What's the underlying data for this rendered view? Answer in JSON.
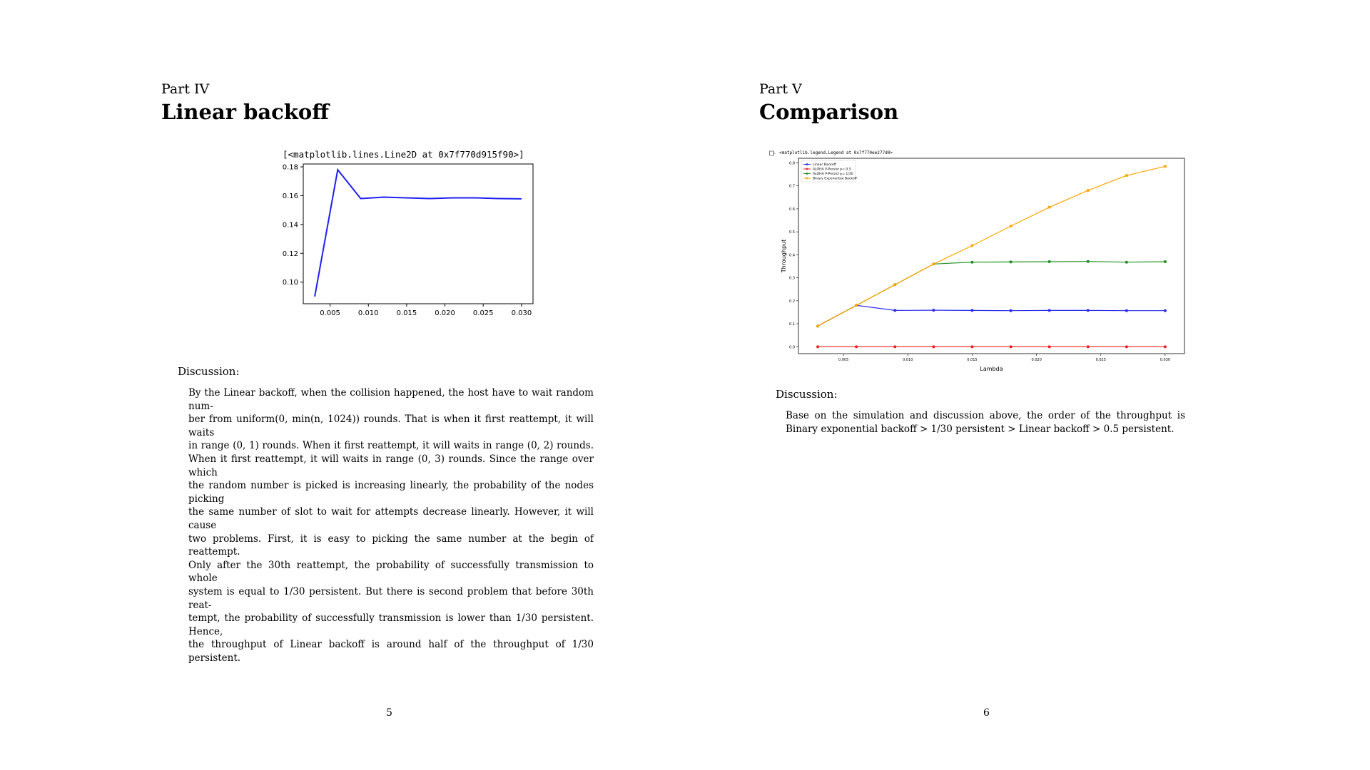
{
  "page_left": {
    "part_label": "Part IV",
    "title": "Linear backoff",
    "code_output": "[<matplotlib.lines.Line2D at 0x7f770d915f90>]",
    "discussion_label": "Discussion:",
    "discussion_lines": [
      "By the Linear backoff, when the collision happened, the host have to wait random num-",
      "ber from uniform(0, min(n, 1024)) rounds. That is when it first reattempt, it will waits",
      "in range (0, 1) rounds. When it first reattempt, it will waits in range (0, 2) rounds.",
      "When it first reattempt, it will waits in range (0, 3) rounds. Since the range over which",
      "the random number is picked is increasing linearly, the probability of the nodes picking",
      "the same number of slot to wait for attempts decrease linearly. However, it will cause",
      "two problems. First, it is easy to picking the same number at the begin of reattempt.",
      "Only after the 30th reattempt, the probability of successfully transmission to whole",
      "system is equal to 1/30 persistent. But there is second problem that before 30th reat-",
      "tempt, the probability of successfully transmission is lower than 1/30 persistent. Hence,",
      "the throughput of Linear backoff is around half of the throughput of 1/30 persistent."
    ],
    "page_number": "5"
  },
  "page_right": {
    "part_label": "Part V",
    "title": "Comparison",
    "code_output": "<matplotlib.legend.Legend at 0x7f770ee277d0>",
    "discussion_label": "Discussion:",
    "discussion_lines": [
      "Base on the simulation and discussion above, the order of the throughput is",
      "Binary exponential backoff > 1/30 persistent > Linear backoff > 0.5 persistent."
    ],
    "page_number": "6"
  },
  "chart_data": [
    {
      "type": "line",
      "title": "",
      "xlabel": "",
      "ylabel": "",
      "xlim": [
        0.0015,
        0.0315
      ],
      "ylim": [
        0.085,
        0.182
      ],
      "xticks": [
        "0.005",
        "0.010",
        "0.015",
        "0.020",
        "0.025",
        "0.030"
      ],
      "yticks": [
        "0.10",
        "0.12",
        "0.14",
        "0.16",
        "0.18"
      ],
      "series": [
        {
          "color": "#1f1ff5",
          "x": [
            0.003,
            0.006,
            0.009,
            0.012,
            0.015,
            0.018,
            0.021,
            0.024,
            0.027,
            0.03
          ],
          "y": [
            0.09,
            0.178,
            0.158,
            0.159,
            0.1585,
            0.158,
            0.1585,
            0.1585,
            0.158,
            0.1578
          ]
        }
      ]
    },
    {
      "type": "line",
      "title": "",
      "xlabel": "Lambda",
      "ylabel": "Throughput",
      "xlim": [
        0.0015,
        0.0315
      ],
      "ylim": [
        -0.03,
        0.82
      ],
      "xticks": [
        "0.005",
        "0.010",
        "0.015",
        "0.020",
        "0.025",
        "0.030"
      ],
      "yticks": [
        "0.0",
        "0.1",
        "0.2",
        "0.3",
        "0.4",
        "0.5",
        "0.6",
        "0.7",
        "0.8"
      ],
      "legend_position": "top-left",
      "x": [
        0.003,
        0.006,
        0.009,
        0.012,
        0.015,
        0.018,
        0.021,
        0.024,
        0.027,
        0.03
      ],
      "series": [
        {
          "name": "Linear Backoff",
          "color": "#2b2bf0",
          "values": [
            0.09,
            0.18,
            0.158,
            0.159,
            0.158,
            0.157,
            0.158,
            0.158,
            0.157,
            0.157
          ]
        },
        {
          "name": "ALOHA P-Persist p= 0.5",
          "color": "#f02020",
          "values": [
            0.0,
            0.0,
            0.0,
            0.0,
            0.0,
            0.0,
            0.0,
            0.0,
            0.0,
            0.0
          ]
        },
        {
          "name": "ALOHA P-Persist p= 1/30",
          "color": "#1f8f1f",
          "values": [
            0.09,
            0.18,
            0.27,
            0.36,
            0.368,
            0.369,
            0.37,
            0.371,
            0.368,
            0.37
          ]
        },
        {
          "name": "Binary Exponential Backoff",
          "color": "#ffa500",
          "values": [
            0.09,
            0.18,
            0.27,
            0.36,
            0.44,
            0.525,
            0.607,
            0.68,
            0.745,
            0.785
          ]
        }
      ]
    }
  ]
}
